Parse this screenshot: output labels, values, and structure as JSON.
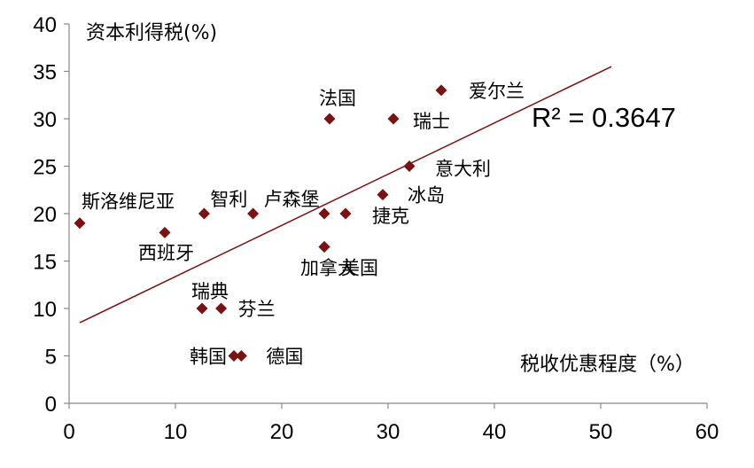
{
  "chart_data": {
    "type": "scatter",
    "title": "",
    "xlabel": "税收优惠程度（%）",
    "ylabel": "资本利得税(%)",
    "xlim": [
      0,
      60
    ],
    "ylim": [
      0,
      40
    ],
    "x_ticks": [
      "0",
      "10",
      "20",
      "30",
      "40",
      "50",
      "60"
    ],
    "y_ticks": [
      "0",
      "5",
      "10",
      "15",
      "20",
      "25",
      "30",
      "35",
      "40"
    ],
    "grid": false,
    "marker_color": "#7b1111",
    "trendline_color": "#7b1111",
    "points": [
      {
        "name": "斯洛维尼亚",
        "x": 1,
        "y": 19
      },
      {
        "name": "西班牙",
        "x": 9,
        "y": 18
      },
      {
        "name": "智利",
        "x": 12.7,
        "y": 20
      },
      {
        "name": "卢森堡",
        "x": 17.3,
        "y": 20
      },
      {
        "name": "瑞典",
        "x": 12.5,
        "y": 10
      },
      {
        "name": "芬兰",
        "x": 14.3,
        "y": 10
      },
      {
        "name": "韩国",
        "x": 15.5,
        "y": 5
      },
      {
        "name": "德国",
        "x": 16.2,
        "y": 5
      },
      {
        "name": "法国",
        "x": 24.5,
        "y": 30
      },
      {
        "name": "",
        "x": 24,
        "y": 20
      },
      {
        "name": "捷克",
        "x": 26,
        "y": 20
      },
      {
        "name": "美国",
        "x": 24,
        "y": 16.5
      },
      {
        "name": "加拿大",
        "x": 24,
        "y": 16.5
      },
      {
        "name": "冰岛",
        "x": 29.5,
        "y": 22
      },
      {
        "name": "意大利",
        "x": 32,
        "y": 25
      },
      {
        "name": "瑞士",
        "x": 30.5,
        "y": 30
      },
      {
        "name": "爱尔兰",
        "x": 35,
        "y": 33
      }
    ],
    "trendline": {
      "x_start": 1,
      "x_end": 51,
      "y_start": 8.5,
      "y_end": 35.5
    },
    "annotation": "R² = 0.3647"
  }
}
